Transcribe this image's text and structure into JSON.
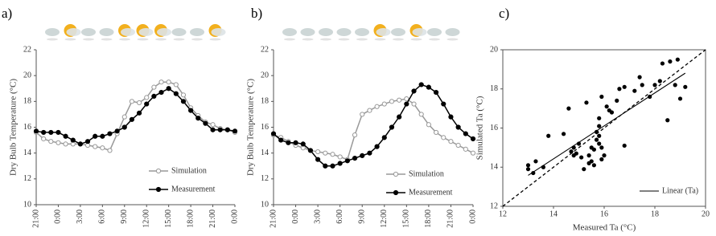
{
  "chart_data": [
    {
      "type": "line",
      "label": "a)",
      "y_label": "Dry Bulb Temperature (°C)",
      "categories": [
        "21:00",
        null,
        null,
        "0:00",
        null,
        null,
        "3:00",
        null,
        null,
        "6:00",
        null,
        null,
        "9:00",
        null,
        null,
        "12:00",
        null,
        null,
        "15:00",
        null,
        null,
        "18:00",
        null,
        null,
        "21:00",
        null,
        null,
        "0:00"
      ],
      "series": [
        {
          "name": "Simulation",
          "color": "#999999",
          "fill": "#ffffff",
          "values": [
            15.6,
            15.1,
            14.9,
            14.8,
            14.7,
            14.7,
            14.7,
            14.6,
            14.5,
            14.4,
            14.2,
            15.5,
            16.8,
            18.0,
            17.9,
            18.3,
            19.1,
            19.5,
            19.5,
            19.3,
            18.5,
            17.5,
            16.9,
            16.4,
            16.2,
            15.9,
            15.8,
            15.6
          ]
        },
        {
          "name": "Measurement",
          "color": "#000000",
          "fill": "#000000",
          "values": [
            15.7,
            15.6,
            15.6,
            15.6,
            15.3,
            15.0,
            14.7,
            14.9,
            15.3,
            15.3,
            15.5,
            15.7,
            16.0,
            16.6,
            17.1,
            17.8,
            18.4,
            18.7,
            19.0,
            18.6,
            18.0,
            17.3,
            16.7,
            16.3,
            15.8,
            15.8,
            15.8,
            15.7
          ]
        }
      ],
      "ylim": [
        10,
        22
      ],
      "yticks": [
        10,
        12,
        14,
        16,
        18,
        20,
        22
      ]
    },
    {
      "type": "line",
      "label": "b)",
      "y_label": "Dry Bulb Temperature (°C)",
      "categories": [
        "21:00",
        null,
        null,
        "0:00",
        null,
        null,
        "3:00",
        null,
        null,
        "6:00",
        null,
        null,
        "9:00",
        null,
        null,
        "12:00",
        null,
        null,
        "15:00",
        null,
        null,
        "18:00",
        null,
        null,
        "21:00",
        null,
        null,
        "0:00"
      ],
      "series": [
        {
          "name": "Simulation",
          "color": "#999999",
          "fill": "#ffffff",
          "values": [
            15.4,
            15.2,
            14.9,
            14.6,
            14.4,
            14.2,
            14.1,
            14.0,
            13.9,
            13.7,
            13.5,
            15.4,
            17.0,
            17.3,
            17.6,
            17.8,
            18.0,
            18.1,
            18.2,
            17.8,
            17.0,
            16.2,
            15.6,
            15.2,
            14.9,
            14.6,
            14.3,
            14.0
          ]
        },
        {
          "name": "Measurement",
          "color": "#000000",
          "fill": "#000000",
          "values": [
            15.5,
            15.0,
            14.8,
            14.8,
            14.7,
            14.2,
            13.5,
            13.0,
            13.0,
            13.2,
            13.4,
            13.6,
            13.8,
            14.0,
            14.5,
            15.2,
            16.0,
            16.8,
            17.8,
            18.8,
            19.3,
            19.1,
            18.7,
            17.8,
            16.8,
            16.0,
            15.5,
            15.1
          ]
        }
      ],
      "ylim": [
        10,
        22
      ],
      "yticks": [
        10,
        12,
        14,
        16,
        18,
        20,
        22
      ]
    },
    {
      "type": "scatter",
      "label": "c)",
      "x_label": "Measured Ta (°C)",
      "y_label": "Simulated Ta (°C)",
      "x": [
        13.0,
        13.0,
        13.2,
        13.3,
        13.6,
        13.8,
        14.4,
        14.6,
        14.7,
        14.8,
        14.8,
        14.9,
        15.0,
        15.1,
        15.2,
        15.3,
        15.4,
        15.4,
        15.5,
        15.5,
        15.6,
        15.6,
        15.7,
        15.7,
        15.8,
        15.8,
        15.8,
        15.8,
        15.9,
        15.9,
        15.9,
        16.0,
        16.1,
        16.2,
        16.3,
        16.5,
        16.6,
        16.8,
        16.8,
        17.2,
        17.4,
        17.5,
        17.8,
        18.0,
        18.2,
        18.3,
        18.5,
        18.6,
        18.8,
        18.9,
        19.0,
        19.2
      ],
      "values": [
        14.1,
        13.9,
        13.7,
        14.3,
        14.0,
        15.6,
        15.7,
        17.0,
        14.8,
        14.6,
        15.0,
        14.7,
        15.2,
        14.5,
        13.9,
        17.3,
        14.2,
        14.6,
        15.0,
        14.3,
        14.9,
        14.1,
        15.4,
        15.8,
        15.2,
        15.6,
        16.1,
        16.5,
        14.4,
        15.0,
        17.6,
        14.6,
        17.1,
        16.9,
        16.8,
        17.4,
        18.0,
        18.1,
        15.1,
        17.9,
        18.6,
        18.2,
        17.6,
        18.2,
        18.4,
        19.3,
        16.4,
        19.4,
        18.2,
        19.5,
        17.5,
        18.1
      ],
      "color": "#000000",
      "trendline": "Linear (Ta)",
      "identity_line": true,
      "xlim": [
        12,
        20
      ],
      "xticks": [
        12,
        14,
        16,
        18,
        20
      ],
      "ylim": [
        12,
        20
      ],
      "yticks": [
        12,
        14,
        16,
        18,
        20
      ]
    }
  ]
}
